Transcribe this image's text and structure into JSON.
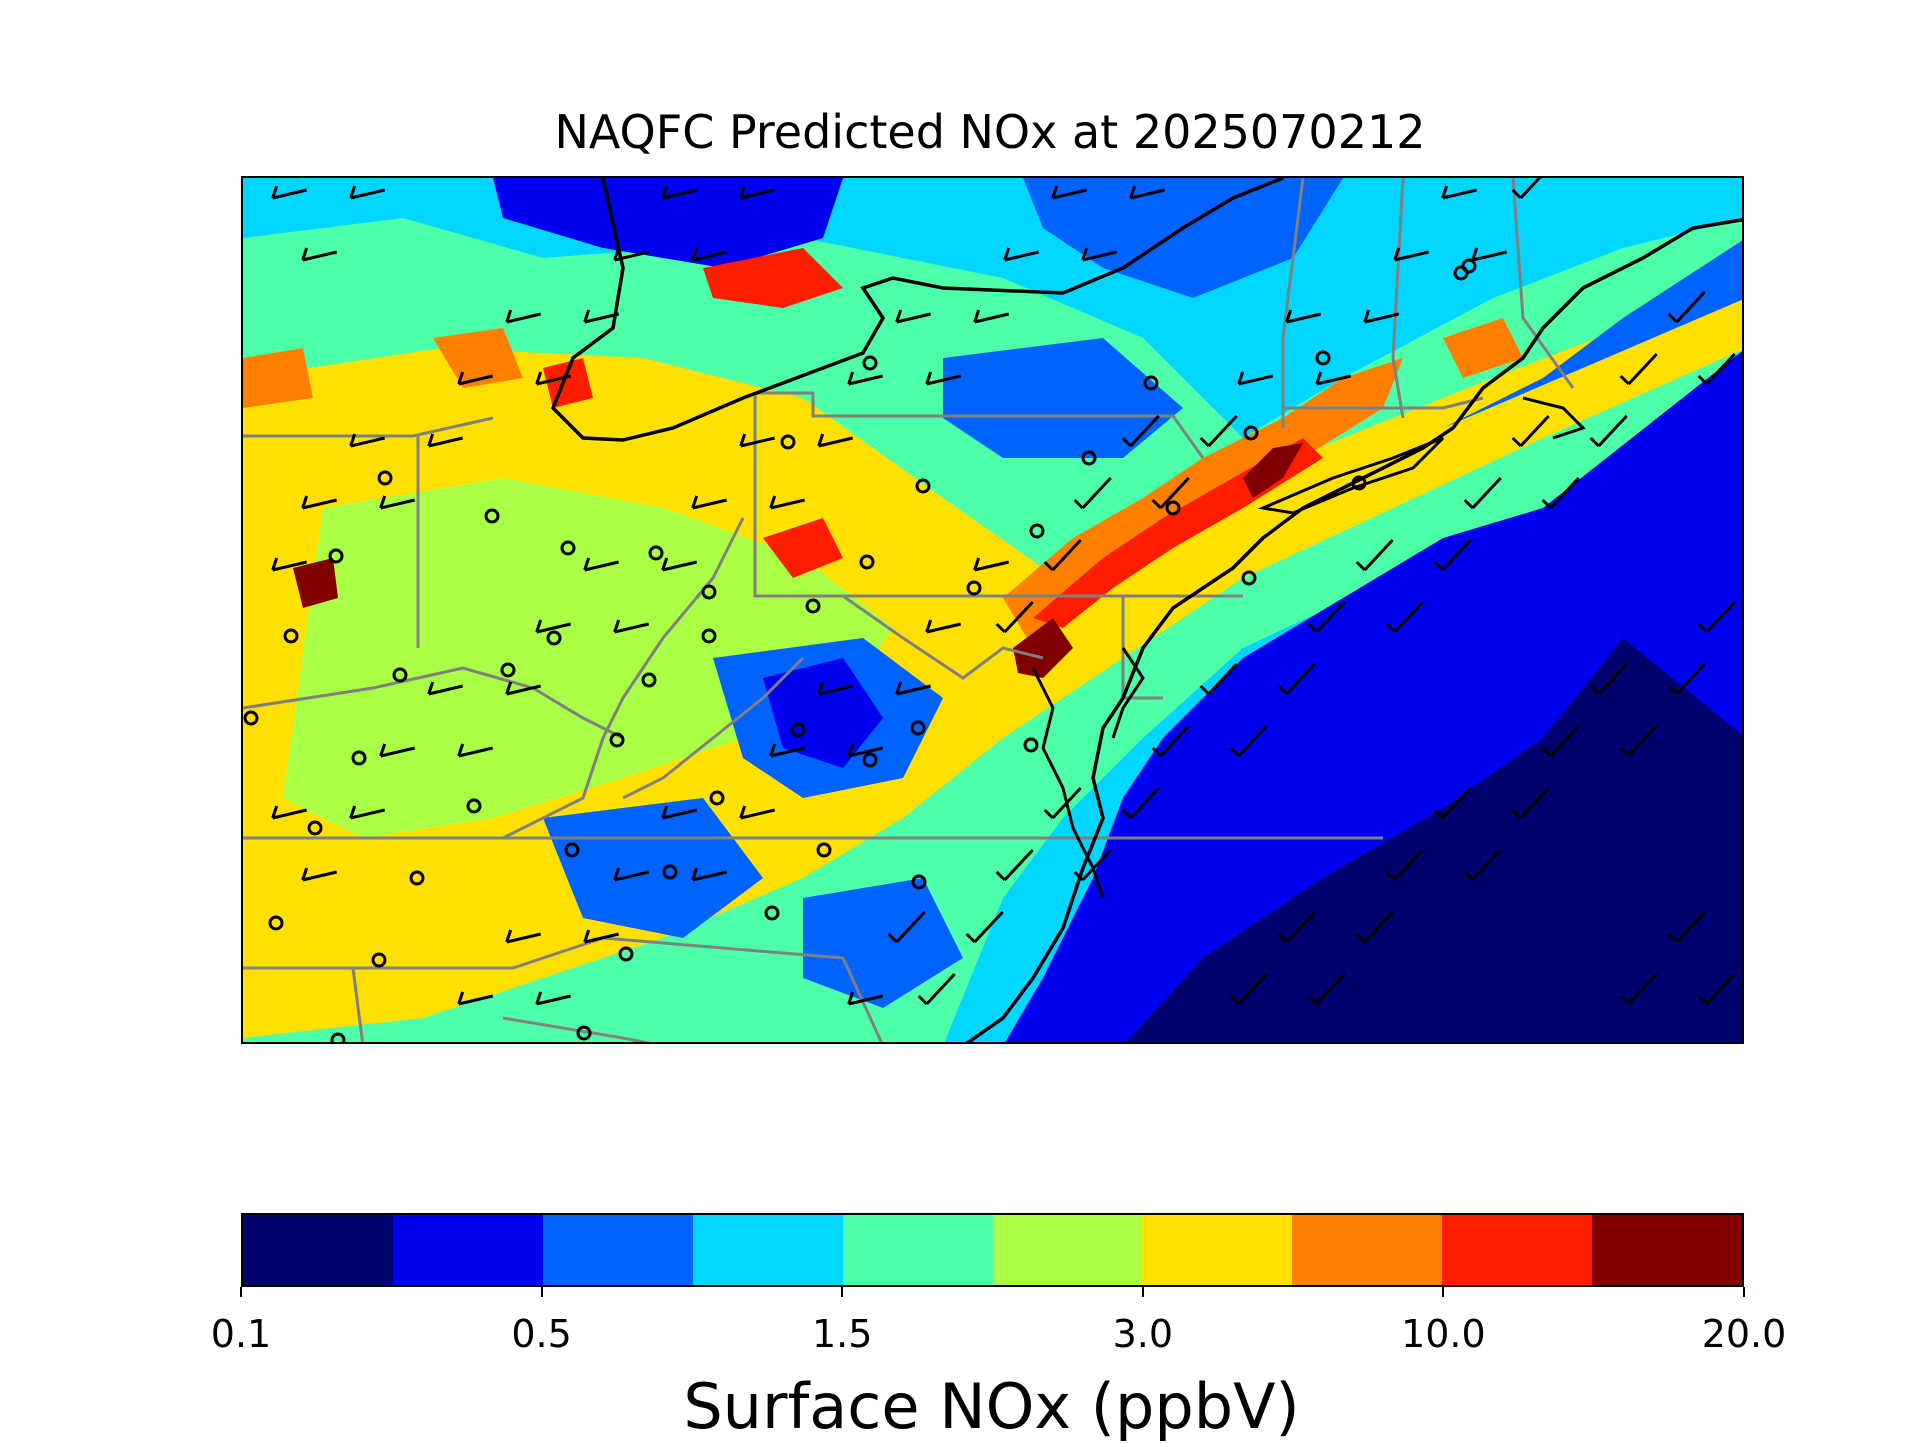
{
  "title": "NAQFC Predicted NOx at 2025070212",
  "colorbar": {
    "label": "Surface NOx (ppbV)",
    "ticks": [
      "0.1",
      "0.5",
      "1.5",
      "3.0",
      "10.0",
      "20.0"
    ],
    "colors": [
      "#00006e",
      "#0000f0",
      "#0062ff",
      "#00d6ff",
      "#4dffa8",
      "#a8ff45",
      "#ffe000",
      "#ff7f00",
      "#ff1d00",
      "#800000"
    ]
  },
  "map": {
    "region": "Eastern United States",
    "ocean_color": "#0000e0",
    "coast_color": "#000000",
    "state_border_color": "#808080",
    "station_marker": "open-circle",
    "wind_symbol": "wind-barb"
  }
}
